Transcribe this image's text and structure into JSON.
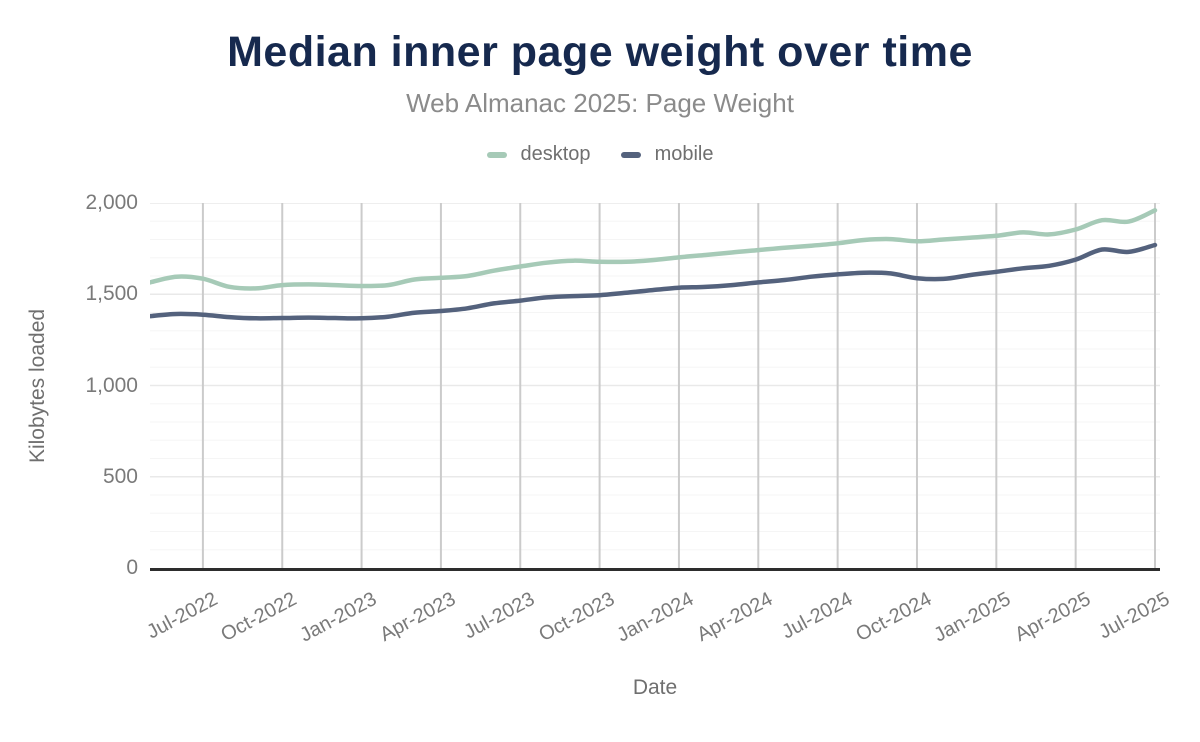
{
  "header": {
    "title": "Median inner page weight over time",
    "subtitle": "Web Almanac 2025: Page Weight"
  },
  "legend": [
    {
      "label": "desktop",
      "color": "#a6cab7"
    },
    {
      "label": "mobile",
      "color": "#54627d"
    }
  ],
  "colors": {
    "title": "#16294e",
    "subtitle": "#8b8b8b",
    "tick_text": "#7a7a7a",
    "grid_vertical": "#cbcbcb",
    "grid_major": "#e9e9e9",
    "grid_minor": "#f5f5f5",
    "axis_line": "#2d2d2d",
    "background": "#ffffff"
  },
  "chart_data": {
    "type": "line",
    "title": "Median inner page weight over time",
    "subtitle": "Web Almanac 2025: Page Weight",
    "xlabel": "Date",
    "ylabel": "Kilobytes loaded",
    "ylim": [
      0,
      2000
    ],
    "y_major_ticks": [
      0,
      500,
      1000,
      1500,
      2000
    ],
    "y_tick_labels": [
      "0",
      "500",
      "1,000",
      "1,500",
      "2,000"
    ],
    "y_minor_grid_step": 100,
    "legend_position": "top",
    "grid": "vertical line at each quarterly x tick; horizontal major gridline every 500, faint minor gridline every 100",
    "x": [
      "May-2022",
      "Jun-2022",
      "Jul-2022",
      "Aug-2022",
      "Sep-2022",
      "Oct-2022",
      "Nov-2022",
      "Dec-2022",
      "Jan-2023",
      "Feb-2023",
      "Mar-2023",
      "Apr-2023",
      "May-2023",
      "Jun-2023",
      "Jul-2023",
      "Aug-2023",
      "Sep-2023",
      "Oct-2023",
      "Nov-2023",
      "Dec-2023",
      "Jan-2024",
      "Feb-2024",
      "Mar-2024",
      "Apr-2024",
      "May-2024",
      "Jun-2024",
      "Jul-2024",
      "Aug-2024",
      "Sep-2024",
      "Oct-2024",
      "Nov-2024",
      "Dec-2024",
      "Jan-2025",
      "Feb-2025",
      "Mar-2025",
      "Apr-2025",
      "May-2025",
      "Jun-2025",
      "Jul-2025"
    ],
    "x_tick_labels": [
      "Jul-2022",
      "Oct-2022",
      "Jan-2023",
      "Apr-2023",
      "Jul-2023",
      "Oct-2023",
      "Jan-2024",
      "Apr-2024",
      "Jul-2024",
      "Oct-2024",
      "Jan-2025",
      "Apr-2025",
      "Jul-2025"
    ],
    "series": [
      {
        "name": "desktop",
        "color": "#a6cab7",
        "values": [
          1565,
          1596,
          1585,
          1541,
          1532,
          1550,
          1554,
          1550,
          1545,
          1550,
          1581,
          1590,
          1600,
          1629,
          1652,
          1673,
          1684,
          1678,
          1678,
          1687,
          1702,
          1715,
          1729,
          1742,
          1755,
          1766,
          1779,
          1797,
          1802,
          1790,
          1800,
          1810,
          1820,
          1839,
          1828,
          1855,
          1906,
          1898,
          1960
        ]
      },
      {
        "name": "mobile",
        "color": "#54627d",
        "values": [
          1380,
          1392,
          1388,
          1375,
          1368,
          1370,
          1372,
          1370,
          1368,
          1377,
          1399,
          1408,
          1423,
          1450,
          1465,
          1483,
          1490,
          1495,
          1508,
          1523,
          1536,
          1540,
          1550,
          1565,
          1578,
          1596,
          1609,
          1618,
          1614,
          1588,
          1584,
          1605,
          1623,
          1642,
          1656,
          1690,
          1745,
          1732,
          1770
        ]
      }
    ]
  }
}
